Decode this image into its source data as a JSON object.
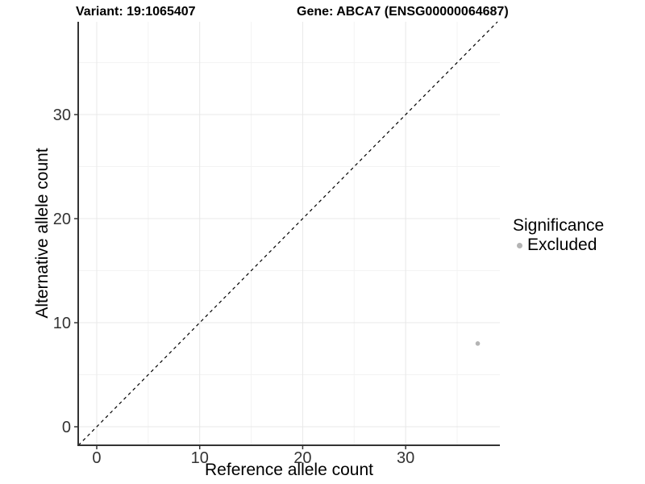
{
  "chart_data": {
    "type": "scatter",
    "title_left": "Variant: 19:1065407",
    "title_right": "Gene: ABCA7 (ENSG00000064687)",
    "xlabel": "Reference allele count",
    "ylabel": "Alternative allele count",
    "xlim": [
      -1.8,
      39.15
    ],
    "ylim": [
      -1.78,
      38.92
    ],
    "xticks": [
      0,
      10,
      20,
      30
    ],
    "yticks": [
      0,
      10,
      20,
      30
    ],
    "xticks_minor": [
      5,
      15,
      25,
      35
    ],
    "yticks_minor": [
      5,
      15,
      25,
      35
    ],
    "grid": "major+minor",
    "legend_position": "right",
    "series": [
      {
        "name": "Excluded",
        "color": "#b4b4b4",
        "points": [
          {
            "x": 37,
            "y": 8
          }
        ]
      }
    ],
    "reference_line": {
      "type": "identity",
      "slope": 1,
      "intercept": 0,
      "linetype": "dashed",
      "color": "#000000"
    },
    "legend": {
      "title": "Significance",
      "items": [
        {
          "label": "Excluded",
          "color": "#b4b4b4",
          "marker": "circle"
        }
      ]
    },
    "colors": {
      "axis": "#333333",
      "grid_major": "#e8e8e8",
      "grid_minor": "#f3f3f3",
      "tick_text": "#333333",
      "background": "#ffffff"
    }
  }
}
